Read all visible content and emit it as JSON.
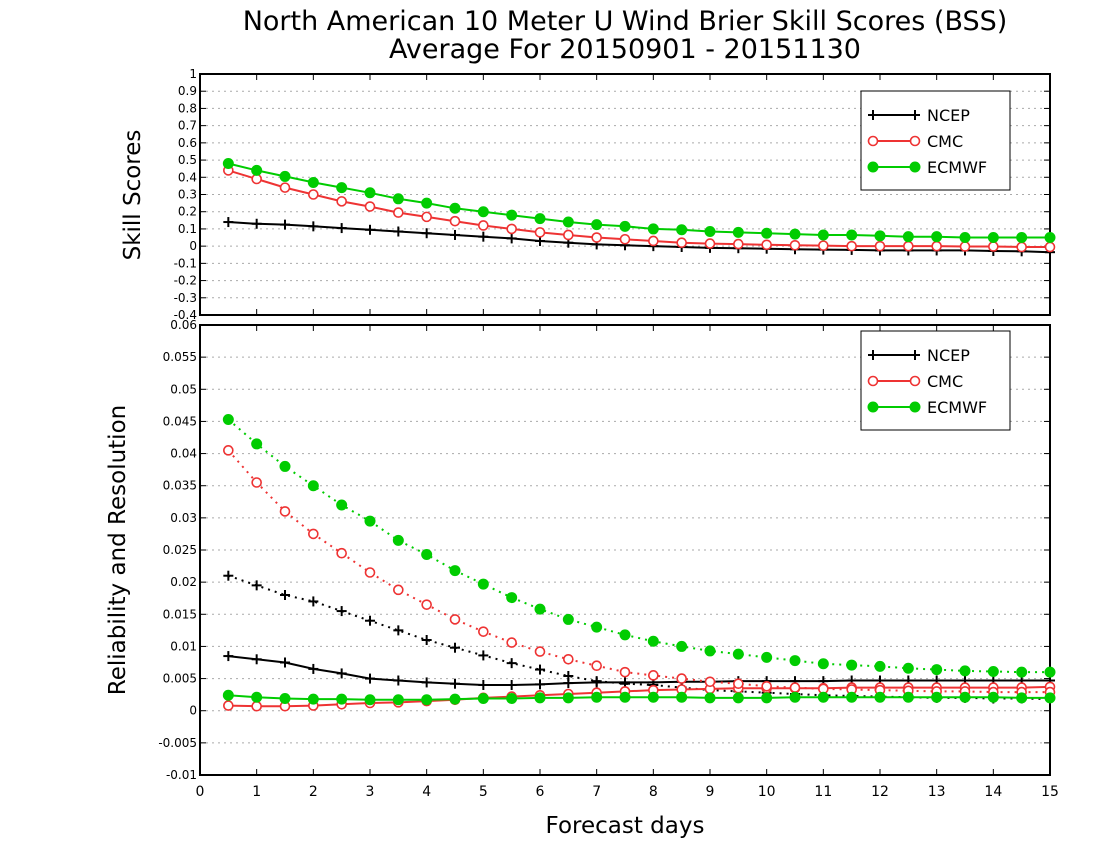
{
  "chart_data": [
    {
      "id": "top",
      "type": "line",
      "title": "North American 10 Meter U Wind Brier Skill Scores (BSS)",
      "subtitle": "Average For 20150901 - 20151130",
      "ylabel": "Skill Scores",
      "xlabel": "",
      "xlim": [
        0,
        15
      ],
      "ylim": [
        -0.4,
        1
      ],
      "yticks": [
        "-0.4",
        "-0.3",
        "-0.2",
        "-0.1",
        "0",
        "0.1",
        "0.2",
        "0.3",
        "0.4",
        "0.5",
        "0.6",
        "0.7",
        "0.8",
        "0.9",
        "1"
      ],
      "grid": "horizontal dotted",
      "legend": {
        "placement": "top-right",
        "entries": [
          "NCEP",
          "CMC",
          "ECMWF"
        ]
      },
      "x": [
        0.5,
        1,
        1.5,
        2,
        2.5,
        3,
        3.5,
        4,
        4.5,
        5,
        5.5,
        6,
        6.5,
        7,
        7.5,
        8,
        8.5,
        9,
        9.5,
        10,
        10.5,
        11,
        11.5,
        12,
        12.5,
        13,
        13.5,
        14,
        14.5,
        15
      ],
      "series": [
        {
          "name": "NCEP",
          "color": "#000000",
          "marker": "plus",
          "style": "solid",
          "values": [
            0.14,
            0.13,
            0.125,
            0.115,
            0.105,
            0.095,
            0.085,
            0.075,
            0.065,
            0.055,
            0.045,
            0.03,
            0.02,
            0.01,
            0.005,
            0.0,
            -0.005,
            -0.01,
            -0.012,
            -0.015,
            -0.018,
            -0.02,
            -0.022,
            -0.025,
            -0.025,
            -0.025,
            -0.025,
            -0.028,
            -0.03,
            -0.035
          ]
        },
        {
          "name": "CMC",
          "color": "#ee3333",
          "marker": "open-circle",
          "style": "solid",
          "values": [
            0.44,
            0.39,
            0.34,
            0.3,
            0.26,
            0.23,
            0.195,
            0.17,
            0.145,
            0.12,
            0.1,
            0.08,
            0.065,
            0.05,
            0.04,
            0.03,
            0.02,
            0.015,
            0.012,
            0.008,
            0.005,
            0.003,
            0.0,
            0.0,
            0.0,
            0.0,
            -0.002,
            -0.002,
            -0.005,
            -0.005
          ]
        },
        {
          "name": "ECMWF",
          "color": "#00cc00",
          "marker": "filled-circle",
          "style": "solid",
          "values": [
            0.48,
            0.44,
            0.405,
            0.37,
            0.34,
            0.31,
            0.275,
            0.25,
            0.22,
            0.2,
            0.18,
            0.16,
            0.14,
            0.125,
            0.115,
            0.1,
            0.095,
            0.085,
            0.08,
            0.075,
            0.07,
            0.065,
            0.065,
            0.06,
            0.055,
            0.055,
            0.05,
            0.05,
            0.05,
            0.05
          ]
        }
      ]
    },
    {
      "id": "bottom",
      "type": "line",
      "title": "",
      "ylabel": "Reliability and Resolution",
      "xlabel": "Forecast days",
      "xlim": [
        0,
        15
      ],
      "ylim": [
        -0.01,
        0.06
      ],
      "yticks": [
        "-0.01",
        "-0.005",
        "0",
        "0.005",
        "0.01",
        "0.015",
        "0.02",
        "0.025",
        "0.03",
        "0.035",
        "0.04",
        "0.045",
        "0.05",
        "0.055",
        "0.06"
      ],
      "xticks": [
        "0",
        "1",
        "2",
        "3",
        "4",
        "5",
        "6",
        "7",
        "8",
        "9",
        "10",
        "11",
        "12",
        "13",
        "14",
        "15"
      ],
      "grid": "horizontal dotted",
      "legend": {
        "placement": "top-right",
        "entries": [
          "NCEP",
          "CMC",
          "ECMWF"
        ]
      },
      "x": [
        0.5,
        1,
        1.5,
        2,
        2.5,
        3,
        3.5,
        4,
        4.5,
        5,
        5.5,
        6,
        6.5,
        7,
        7.5,
        8,
        8.5,
        9,
        9.5,
        10,
        10.5,
        11,
        11.5,
        12,
        12.5,
        13,
        13.5,
        14,
        14.5,
        15
      ],
      "series": [
        {
          "name": "NCEP",
          "color": "#000000",
          "marker": "plus",
          "style": "solid",
          "values": [
            0.0085,
            0.008,
            0.0075,
            0.0065,
            0.0058,
            0.005,
            0.0047,
            0.0044,
            0.0042,
            0.004,
            0.004,
            0.0041,
            0.0043,
            0.0044,
            0.0044,
            0.0044,
            0.0045,
            0.0045,
            0.0046,
            0.0046,
            0.0046,
            0.0046,
            0.0047,
            0.0047,
            0.0047,
            0.0047,
            0.0047,
            0.0047,
            0.0047,
            0.0047
          ]
        },
        {
          "name": "",
          "color": "#000000",
          "marker": "plus",
          "style": "dotted",
          "values": [
            0.021,
            0.0195,
            0.018,
            0.017,
            0.0155,
            0.014,
            0.0125,
            0.011,
            0.0098,
            0.0086,
            0.0074,
            0.0064,
            0.0054,
            0.0046,
            0.0042,
            0.004,
            0.0036,
            0.0032,
            0.003,
            0.0028,
            0.0026,
            0.0024,
            0.0023,
            0.0022,
            0.0021,
            0.002,
            0.002,
            0.0019,
            0.0019,
            0.0018
          ]
        },
        {
          "name": "CMC",
          "color": "#ee3333",
          "marker": "open-circle",
          "style": "solid",
          "values": [
            0.0008,
            0.0007,
            0.0007,
            0.0008,
            0.001,
            0.0012,
            0.0013,
            0.0015,
            0.0017,
            0.002,
            0.0022,
            0.0024,
            0.0026,
            0.0028,
            0.003,
            0.0032,
            0.0033,
            0.0034,
            0.0035,
            0.0035,
            0.0035,
            0.0035,
            0.0036,
            0.0036,
            0.0036,
            0.0036,
            0.0036,
            0.0036,
            0.0036,
            0.0037
          ]
        },
        {
          "name": "",
          "color": "#ee3333",
          "marker": "open-circle",
          "style": "dotted",
          "values": [
            0.0405,
            0.0355,
            0.031,
            0.0275,
            0.0245,
            0.0215,
            0.0188,
            0.0165,
            0.0142,
            0.0123,
            0.0106,
            0.0092,
            0.008,
            0.007,
            0.006,
            0.0055,
            0.005,
            0.0045,
            0.0042,
            0.0038,
            0.0036,
            0.0034,
            0.0033,
            0.0032,
            0.0031,
            0.003,
            0.003,
            0.0029,
            0.0029,
            0.0029
          ]
        },
        {
          "name": "ECMWF",
          "color": "#00cc00",
          "marker": "filled-circle",
          "style": "solid",
          "values": [
            0.0024,
            0.0021,
            0.0019,
            0.0018,
            0.0018,
            0.0017,
            0.0017,
            0.0017,
            0.0018,
            0.0019,
            0.0019,
            0.002,
            0.002,
            0.0021,
            0.0021,
            0.0021,
            0.0021,
            0.002,
            0.002,
            0.002,
            0.0021,
            0.0021,
            0.0021,
            0.0021,
            0.0021,
            0.0021,
            0.0021,
            0.0021,
            0.002,
            0.002
          ]
        },
        {
          "name": "",
          "color": "#00cc00",
          "marker": "filled-circle",
          "style": "dotted",
          "values": [
            0.0453,
            0.0415,
            0.038,
            0.035,
            0.032,
            0.0295,
            0.0265,
            0.0243,
            0.0218,
            0.0197,
            0.0176,
            0.0158,
            0.0142,
            0.013,
            0.0118,
            0.0108,
            0.01,
            0.0093,
            0.0088,
            0.0083,
            0.0078,
            0.0073,
            0.0071,
            0.0069,
            0.0066,
            0.0064,
            0.0062,
            0.0061,
            0.006,
            0.006
          ]
        }
      ]
    }
  ]
}
